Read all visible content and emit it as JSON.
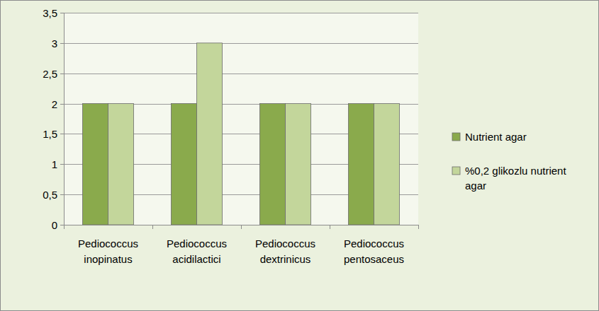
{
  "chart_data": {
    "type": "bar",
    "categories": [
      "Pediococcus inopinatus",
      "Pediococcus acidilactici",
      "Pediococcus dextrinicus",
      "Pediococcus pentosaceus"
    ],
    "series": [
      {
        "name": "Nutrient agar",
        "color": "#8aaa4c",
        "values": [
          2,
          2,
          2,
          2
        ]
      },
      {
        "name": "%0,2 glikozlu nutrient agar",
        "color": "#c3d69b",
        "values": [
          2,
          3,
          2,
          2
        ]
      }
    ],
    "ylim": [
      0,
      3.5
    ],
    "yticks": [
      0,
      {
        "value": 0.5,
        "label": "0,5"
      },
      1,
      {
        "value": 1.5,
        "label": "1,5"
      },
      2,
      {
        "value": 2.5,
        "label": "2,5"
      },
      3,
      {
        "value": 3.5,
        "label": "3,5"
      }
    ],
    "grid": true,
    "legend": "right"
  }
}
